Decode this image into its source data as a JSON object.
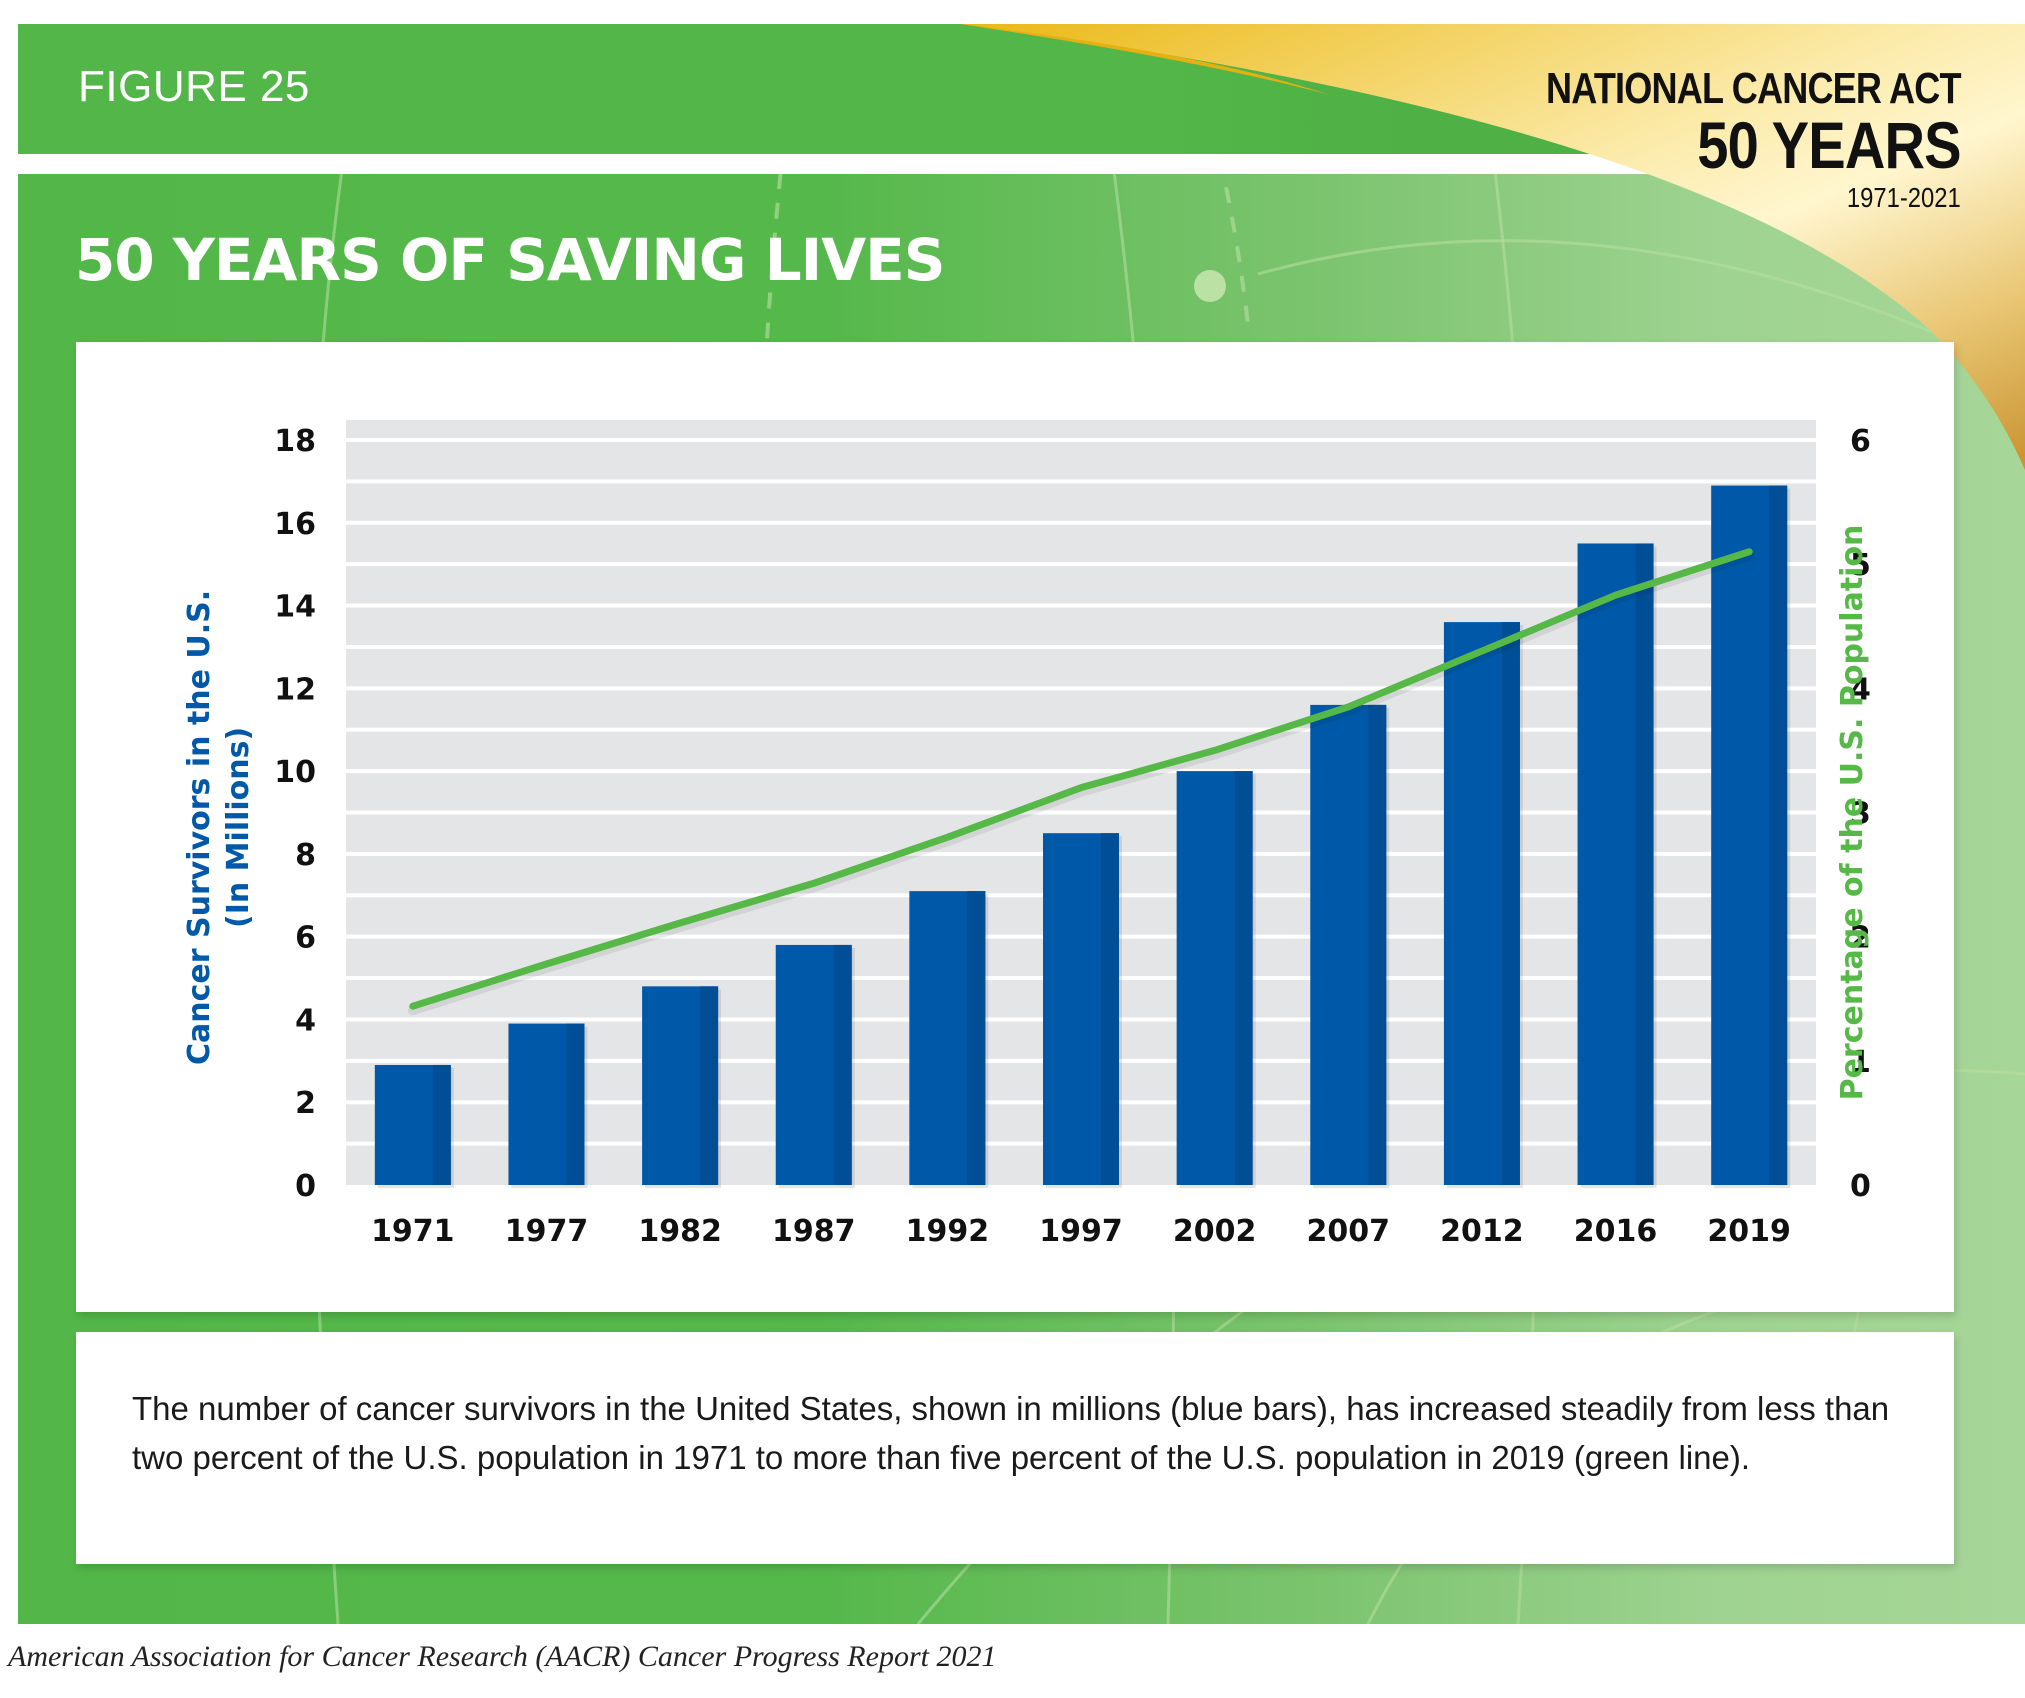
{
  "header": {
    "figure_label": "FIGURE 25",
    "title": "50 YEARS OF SAVING LIVES",
    "badge": {
      "line1": "NATIONAL CANCER ACT",
      "line2": "50 YEARS",
      "line3": "1971-2021"
    }
  },
  "colors": {
    "brand_green": "#52b748",
    "bar_blue": "#0059a8",
    "bar_blue_dark": "#004f96",
    "line_green": "#55b847",
    "grid_bg": "#e4e5e7",
    "gold": "#e9bb1e"
  },
  "chart_data": {
    "type": "bar",
    "title": "50 YEARS OF SAVING LIVES",
    "categories": [
      "1971",
      "1977",
      "1982",
      "1987",
      "1992",
      "1997",
      "2002",
      "2007",
      "2012",
      "2016",
      "2019"
    ],
    "series": [
      {
        "name": "Cancer Survivors in the U.S. (In Millions)",
        "type": "bar",
        "axis": "left",
        "color": "#0059a8",
        "values": [
          2.9,
          3.9,
          4.8,
          5.8,
          7.1,
          8.5,
          10.0,
          11.6,
          13.6,
          15.5,
          16.9
        ]
      },
      {
        "name": "Percentage of the U.S. Population",
        "type": "line",
        "axis": "right",
        "color": "#55b847",
        "values": [
          1.44,
          1.78,
          2.11,
          2.43,
          2.8,
          3.2,
          3.5,
          3.85,
          4.3,
          4.75,
          5.1
        ]
      }
    ],
    "xlabel": "",
    "ylabel": "Cancer Survivors in the U.S.",
    "ylabel_line2": "(In Millions)",
    "y2label": "Percentage of the U.S. Population",
    "ylim": [
      0,
      18
    ],
    "y2lim": [
      0,
      6
    ],
    "yticks": [
      0,
      2,
      4,
      6,
      8,
      10,
      12,
      14,
      16,
      18
    ],
    "y2ticks": [
      0,
      1,
      2,
      3,
      4,
      5,
      6
    ],
    "grid": true,
    "legend": "none"
  },
  "caption": "The number of cancer survivors in the United States, shown in millions (blue bars), has increased steadily from less than two percent of the U.S. population in 1971 to more than five percent of the U.S. population in 2019 (green line).",
  "footer": "American Association for Cancer Research (AACR) Cancer Progress Report 2021"
}
